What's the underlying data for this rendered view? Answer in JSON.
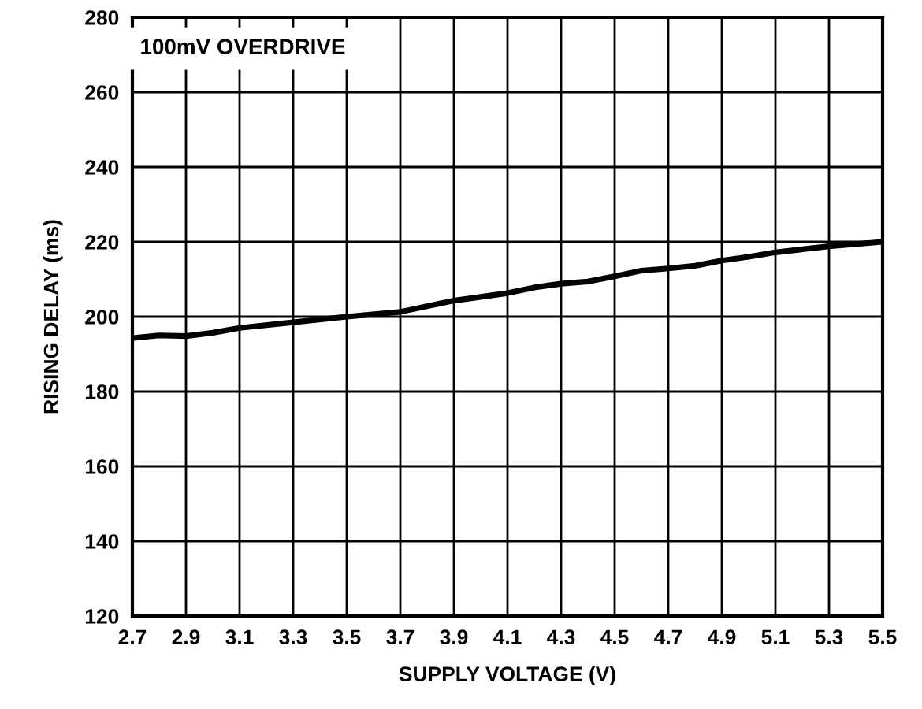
{
  "chart_data": {
    "type": "line",
    "xlabel": "SUPPLY VOLTAGE (V)",
    "ylabel": "RISING DELAY (ms)",
    "annotations": [
      "100mV OVERDRIVE"
    ],
    "x": [
      2.7,
      2.8,
      2.9,
      3.0,
      3.1,
      3.3,
      3.5,
      3.7,
      3.9,
      4.1,
      4.2,
      4.3,
      4.4,
      4.5,
      4.6,
      4.7,
      4.8,
      4.9,
      5.0,
      5.1,
      5.3,
      5.5
    ],
    "series": [
      {
        "color": "#000000",
        "values": [
          194.3,
          195,
          194.8,
          195.7,
          197,
          198.5,
          200,
          201.3,
          204.3,
          206.3,
          207.8,
          208.8,
          209.4,
          210.8,
          212.3,
          212.9,
          213.6,
          215,
          216,
          217.2,
          218.8,
          220
        ]
      }
    ],
    "xlim": [
      2.7,
      5.5
    ],
    "xticks": [
      {
        "value": 2.7,
        "label": "2.7"
      },
      {
        "value": 2.9,
        "label": "2.9"
      },
      {
        "value": 3.1,
        "label": "3.1"
      },
      {
        "value": 3.3,
        "label": "3.3"
      },
      {
        "value": 3.5,
        "label": "3.5"
      },
      {
        "value": 3.7,
        "label": "3.7"
      },
      {
        "value": 3.9,
        "label": "3.9"
      },
      {
        "value": 4.1,
        "label": "4.1"
      },
      {
        "value": 4.3,
        "label": "4.3"
      },
      {
        "value": 4.5,
        "label": "4.5"
      },
      {
        "value": 4.7,
        "label": "4.7"
      },
      {
        "value": 4.9,
        "label": "4.9"
      },
      {
        "value": 5.1,
        "label": "5.1"
      },
      {
        "value": 5.3,
        "label": "5.3"
      },
      {
        "value": 5.5,
        "label": "5.5"
      }
    ],
    "ylim": [
      120,
      280
    ],
    "yticks": [
      120,
      140,
      160,
      180,
      200,
      220,
      240,
      260,
      280
    ],
    "grid": true,
    "legend": false,
    "marker": "none",
    "line_style": "solid"
  }
}
